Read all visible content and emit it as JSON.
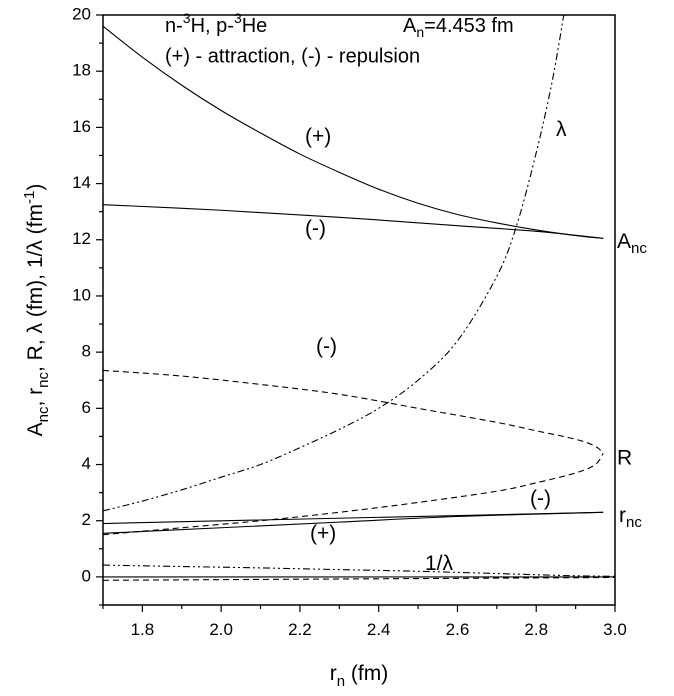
{
  "chart_data": {
    "type": "line",
    "title": "",
    "xlabel": "r_n (fm)",
    "ylabel": "A_nc, r_nc, R, λ (fm), 1/λ (fm^-1)",
    "xlim": [
      1.7,
      3.0
    ],
    "ylim": [
      -1,
      20
    ],
    "xticks": [
      "1.8",
      "2.0",
      "2.2",
      "2.4",
      "2.6",
      "2.8",
      "3.0"
    ],
    "yticks": [
      "0",
      "2",
      "4",
      "6",
      "8",
      "10",
      "12",
      "14",
      "16",
      "18",
      "20"
    ],
    "legend_lines": [
      "n-3H, p-3He",
      "An=4.453 fm",
      "(+) - attraction,  (-) - repulsion"
    ],
    "series": [
      {
        "name": "Anc",
        "branch": "(+)",
        "style": "solid",
        "x": [
          1.7,
          1.8,
          1.9,
          2.0,
          2.1,
          2.2,
          2.3,
          2.4,
          2.5,
          2.6,
          2.7,
          2.8,
          2.9,
          2.97
        ],
        "y": [
          19.6,
          18.5,
          17.5,
          16.6,
          15.8,
          15.05,
          14.4,
          13.8,
          13.3,
          12.9,
          12.6,
          12.35,
          12.15,
          12.05
        ]
      },
      {
        "name": "Anc",
        "branch": "(-)",
        "style": "solid",
        "x": [
          1.7,
          2.0,
          2.3,
          2.6,
          2.8,
          2.97
        ],
        "y": [
          13.25,
          13.05,
          12.8,
          12.5,
          12.3,
          12.05
        ]
      },
      {
        "name": "R",
        "branch": "(-)",
        "style": "dashed",
        "x": [
          1.7,
          1.9,
          2.1,
          2.3,
          2.5,
          2.7,
          2.8,
          2.9,
          2.95,
          2.97
        ],
        "y": [
          7.35,
          7.15,
          6.85,
          6.5,
          6.0,
          5.5,
          5.2,
          4.9,
          4.65,
          4.4
        ]
      },
      {
        "name": "R",
        "branch": "(+)",
        "style": "dashed",
        "x": [
          1.7,
          1.9,
          2.1,
          2.3,
          2.5,
          2.7,
          2.8,
          2.9,
          2.95,
          2.97
        ],
        "y": [
          1.5,
          1.75,
          2.0,
          2.3,
          2.65,
          3.05,
          3.35,
          3.7,
          4.0,
          4.4
        ]
      },
      {
        "name": "λ",
        "style": "dash-dot-dot",
        "x": [
          1.7,
          1.8,
          1.9,
          2.0,
          2.1,
          2.2,
          2.3,
          2.4,
          2.5,
          2.6,
          2.7,
          2.75,
          2.8,
          2.84,
          2.87
        ],
        "y": [
          2.35,
          2.7,
          3.1,
          3.55,
          4.0,
          4.6,
          5.25,
          6.0,
          7.0,
          8.4,
          10.7,
          12.5,
          15.1,
          17.6,
          20.0
        ]
      },
      {
        "name": "rnc",
        "branch": "(-)",
        "style": "solid",
        "x": [
          1.7,
          2.97
        ],
        "y": [
          1.9,
          2.3
        ]
      },
      {
        "name": "rnc",
        "branch": "(+)",
        "style": "solid",
        "x": [
          1.7,
          2.0,
          2.3,
          2.6,
          2.97
        ],
        "y": [
          1.55,
          1.75,
          1.95,
          2.15,
          2.3
        ]
      },
      {
        "name": "1/λ",
        "style": "dash-dot-dot",
        "x": [
          1.7,
          1.9,
          2.1,
          2.3,
          2.5,
          2.7,
          2.87,
          3.0
        ],
        "y": [
          0.42,
          0.37,
          0.32,
          0.26,
          0.2,
          0.12,
          0.05,
          0.02
        ]
      },
      {
        "name": "zero-line",
        "style": "solid",
        "x": [
          1.7,
          3.0
        ],
        "y": [
          0.0,
          0.0
        ]
      },
      {
        "name": "zero-line-2",
        "style": "dashed",
        "x": [
          1.7,
          3.0
        ],
        "y": [
          -0.12,
          -0.02
        ]
      }
    ],
    "curve_labels": {
      "anc": "A_nc",
      "r": "R",
      "rnc": "r_nc",
      "lambda": "λ",
      "inv_lambda": "1/λ"
    },
    "annotations": [
      "(+)",
      "(-)",
      "(-)",
      "(-)",
      "(+)"
    ]
  }
}
